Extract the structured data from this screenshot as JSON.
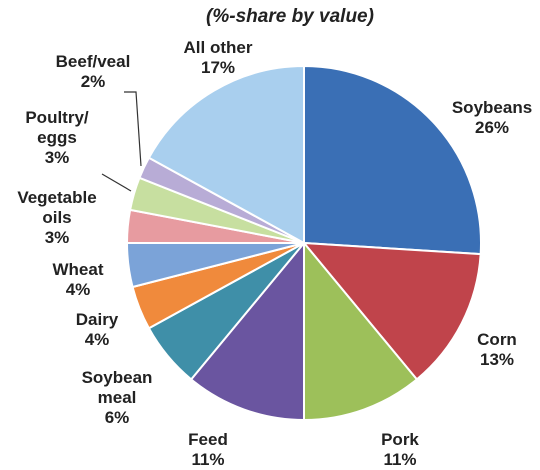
{
  "chart_data": {
    "type": "pie",
    "subtitle": "(%-share by value)",
    "categories": [
      "Soybeans",
      "Corn",
      "Pork",
      "Feed",
      "Soybean meal",
      "Dairy",
      "Wheat",
      "Vegetable oils",
      "Poultry/ eggs",
      "Beef/veal",
      "All other"
    ],
    "values": [
      26,
      13,
      11,
      11,
      6,
      4,
      4,
      3,
      3,
      2,
      17
    ],
    "value_labels": [
      "26%",
      "13%",
      "11%",
      "11%",
      "6%",
      "4%",
      "4%",
      "3%",
      "3%",
      "2%",
      "17%"
    ],
    "colors": [
      "#3a6fb5",
      "#c0444b",
      "#9dc05a",
      "#6a55a0",
      "#3f8fa8",
      "#f08a3c",
      "#7ba3d8",
      "#e79ba0",
      "#c7dfa0",
      "#b8acd6",
      "#a9cfee"
    ]
  }
}
